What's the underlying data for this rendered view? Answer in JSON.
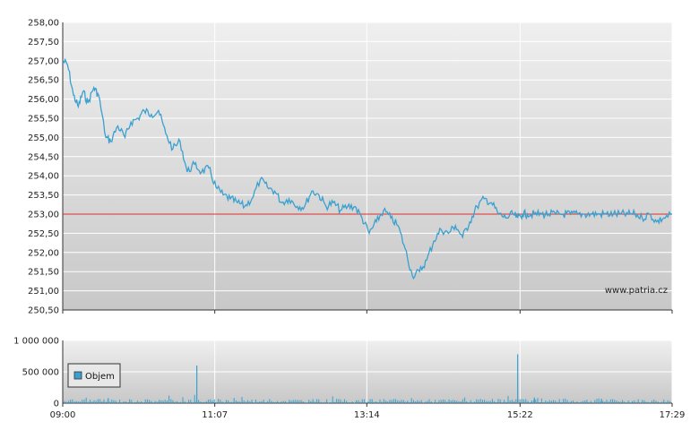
{
  "chart_data": [
    {
      "type": "line",
      "x_ticks": [
        "09:00",
        "11:07",
        "13:14",
        "15:22",
        "17:29"
      ],
      "y_ticks": [
        "258,00",
        "257,50",
        "257,00",
        "256,50",
        "256,00",
        "255,50",
        "255,00",
        "254,50",
        "254,00",
        "253,50",
        "253,00",
        "252,50",
        "252,00",
        "251,50",
        "251,00",
        "250,50"
      ],
      "ylim": [
        250.5,
        258.0
      ],
      "reference_line": {
        "value": 253.0,
        "color": "#e03030"
      },
      "line_color": "#3aa0d0",
      "watermark": "www.patria.cz",
      "series": [
        {
          "x": [
            "09:00",
            "09:04",
            "09:09",
            "09:13",
            "09:17",
            "09:21",
            "09:26",
            "09:30",
            "09:36",
            "09:40",
            "09:46",
            "09:52",
            "09:57",
            "10:03",
            "10:08",
            "10:14",
            "10:20",
            "10:26",
            "10:32",
            "10:38",
            "10:44",
            "10:50",
            "10:56",
            "11:02",
            "11:08",
            "11:14",
            "11:20",
            "11:26",
            "11:32",
            "11:38",
            "11:45",
            "11:51",
            "11:57",
            "12:03",
            "12:09",
            "12:16",
            "12:22",
            "12:28",
            "12:34",
            "12:40",
            "12:46",
            "12:52",
            "12:58",
            "13:04",
            "13:10",
            "13:16",
            "13:22",
            "13:28",
            "13:34",
            "13:40",
            "13:46",
            "13:52",
            "13:58",
            "14:04",
            "14:10",
            "14:16",
            "14:22",
            "14:28",
            "14:34",
            "14:40",
            "14:46",
            "14:52",
            "14:58",
            "15:04",
            "15:10",
            "15:16",
            "15:20",
            "15:24",
            "15:28",
            "15:34",
            "15:40",
            "15:46",
            "15:52",
            "15:58",
            "16:04",
            "16:10",
            "16:16",
            "16:22",
            "16:28",
            "16:34",
            "16:40",
            "16:46",
            "16:52",
            "16:58",
            "17:04",
            "17:10",
            "17:16",
            "17:22",
            "17:29"
          ],
          "values": [
            257.0,
            256.9,
            256.1,
            255.8,
            256.2,
            255.9,
            256.3,
            256.1,
            255.0,
            254.9,
            255.3,
            255.0,
            255.4,
            255.5,
            255.7,
            255.6,
            255.7,
            255.1,
            254.7,
            254.9,
            254.1,
            254.3,
            254.1,
            254.2,
            253.7,
            253.5,
            253.4,
            253.3,
            253.2,
            253.4,
            253.9,
            253.7,
            253.6,
            253.3,
            253.4,
            253.2,
            253.2,
            253.6,
            253.5,
            253.2,
            253.3,
            253.1,
            253.2,
            253.2,
            252.9,
            252.5,
            252.8,
            253.1,
            252.9,
            252.7,
            252.1,
            251.4,
            251.5,
            251.8,
            252.3,
            252.6,
            252.5,
            252.7,
            252.4,
            252.8,
            253.2,
            253.4,
            253.3,
            253.0,
            252.9,
            253.0,
            252.9,
            253.0,
            253.0,
            253.0,
            253.0,
            253.0,
            253.0,
            253.0,
            253.0,
            253.0,
            253.0,
            253.0,
            253.0,
            253.0,
            253.0,
            253.0,
            253.0,
            253.0,
            252.9,
            253.0,
            252.8,
            252.9,
            253.0
          ]
        }
      ]
    },
    {
      "type": "bar",
      "x_ticks": [
        "09:00",
        "11:07",
        "13:14",
        "15:22",
        "17:29"
      ],
      "y_ticks": [
        "1 000 000",
        "500 000",
        "0"
      ],
      "ylim": [
        0,
        1000000
      ],
      "bar_color": "#3aa0d0",
      "legend": {
        "label": "Objem",
        "color": "#3aa0d0"
      },
      "series": [
        {
          "name": "Objem",
          "spikes": [
            {
              "x": "09:38",
              "value": 80000
            },
            {
              "x": "10:52",
              "value": 600000
            },
            {
              "x": "15:20",
              "value": 780000
            },
            {
              "x": "15:34",
              "value": 90000
            },
            {
              "x": "16:30",
              "value": 70000
            }
          ],
          "baseline_level": 50000
        }
      ]
    }
  ]
}
